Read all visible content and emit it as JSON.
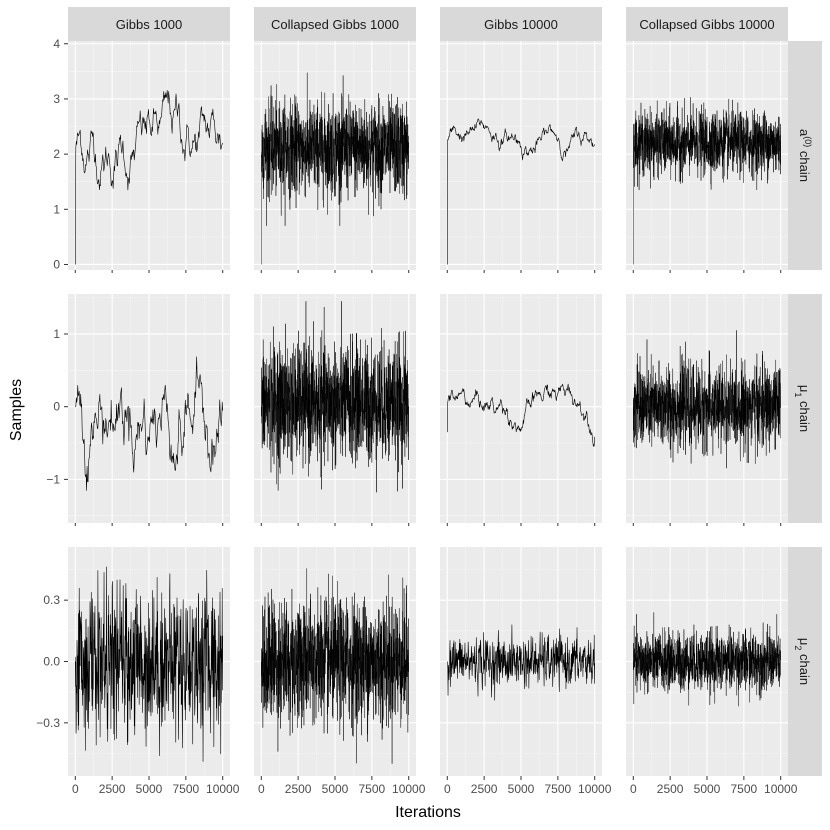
{
  "chart_data": {
    "type": "line",
    "xlabel": "Iterations",
    "ylabel": "Samples",
    "x_range": [
      0,
      10000
    ],
    "x_ticks": [
      0,
      2500,
      5000,
      7500,
      10000
    ],
    "x_tick_labels": [
      "0",
      "2500",
      "5000",
      "7500",
      "10000"
    ],
    "series_color": "#000000",
    "panel_background": "#ebebeb",
    "strip_background": "#d9d9d9",
    "grid": true,
    "columns": [
      "Gibbs 1000",
      "Collapsed Gibbs 1000",
      "Gibbs 10000",
      "Collapsed Gibbs 10000"
    ],
    "rows": [
      {
        "label_main": "a",
        "label_sup": "(0)",
        "label_suffix": " chain",
        "ylim": [
          -0.1,
          4.05
        ],
        "yticks": [
          0,
          1,
          2,
          3,
          4
        ],
        "ytick_labels": [
          "0",
          "1",
          "2",
          "3",
          "4"
        ],
        "panels": [
          {
            "start": 0.0,
            "center": 2.15,
            "spread": 0.5,
            "smooth": 0.97,
            "n": 300,
            "min": 0.55,
            "max": 3.85
          },
          {
            "start": 0.0,
            "center": 2.1,
            "spread": 0.42,
            "smooth": 0.0,
            "n": 1400,
            "min": 0.7,
            "max": 3.55
          },
          {
            "start": 0.0,
            "center": 2.25,
            "spread": 0.28,
            "smooth": 0.99,
            "n": 400,
            "min": 1.65,
            "max": 2.75
          },
          {
            "start": 0.0,
            "center": 2.2,
            "spread": 0.28,
            "smooth": 0.0,
            "n": 1400,
            "min": 1.35,
            "max": 3.45
          }
        ]
      },
      {
        "label_main": "μ",
        "label_sub": "1",
        "label_suffix": " chain",
        "ylim": [
          -1.6,
          1.55
        ],
        "yticks": [
          -1,
          0,
          1
        ],
        "ytick_labels": [
          "−1",
          "0",
          "1"
        ],
        "panels": [
          {
            "start": 0.0,
            "center": 0.0,
            "spread": 0.45,
            "smooth": 0.95,
            "n": 300,
            "min": -1.55,
            "max": 1.45
          },
          {
            "start": 0.0,
            "center": 0.05,
            "spread": 0.4,
            "smooth": 0.0,
            "n": 1400,
            "min": -1.5,
            "max": 1.45
          },
          {
            "start": -0.35,
            "center": 0.0,
            "spread": 0.25,
            "smooth": 0.99,
            "n": 400,
            "min": -0.55,
            "max": 0.62
          },
          {
            "start": 0.0,
            "center": 0.0,
            "spread": 0.28,
            "smooth": 0.0,
            "n": 1400,
            "min": -1.2,
            "max": 1.05
          }
        ]
      },
      {
        "label_main": "μ",
        "label_sub": "2",
        "label_suffix": " chain",
        "ylim": [
          -0.56,
          0.56
        ],
        "yticks": [
          -0.3,
          0.0,
          0.3
        ],
        "ytick_labels": [
          "−0.3",
          "0.0",
          "0.3"
        ],
        "panels": [
          {
            "start": 0.0,
            "center": 0.0,
            "spread": 0.18,
            "smooth": 0.0,
            "n": 600,
            "min": -0.52,
            "max": 0.52
          },
          {
            "start": 0.0,
            "center": 0.0,
            "spread": 0.15,
            "smooth": 0.0,
            "n": 1400,
            "min": -0.5,
            "max": 0.48
          },
          {
            "start": 0.0,
            "center": 0.0,
            "spread": 0.06,
            "smooth": 0.3,
            "n": 600,
            "min": -0.22,
            "max": 0.2
          },
          {
            "start": 0.0,
            "center": 0.0,
            "spread": 0.07,
            "smooth": 0.0,
            "n": 1400,
            "min": -0.24,
            "max": 0.24
          }
        ]
      }
    ]
  }
}
